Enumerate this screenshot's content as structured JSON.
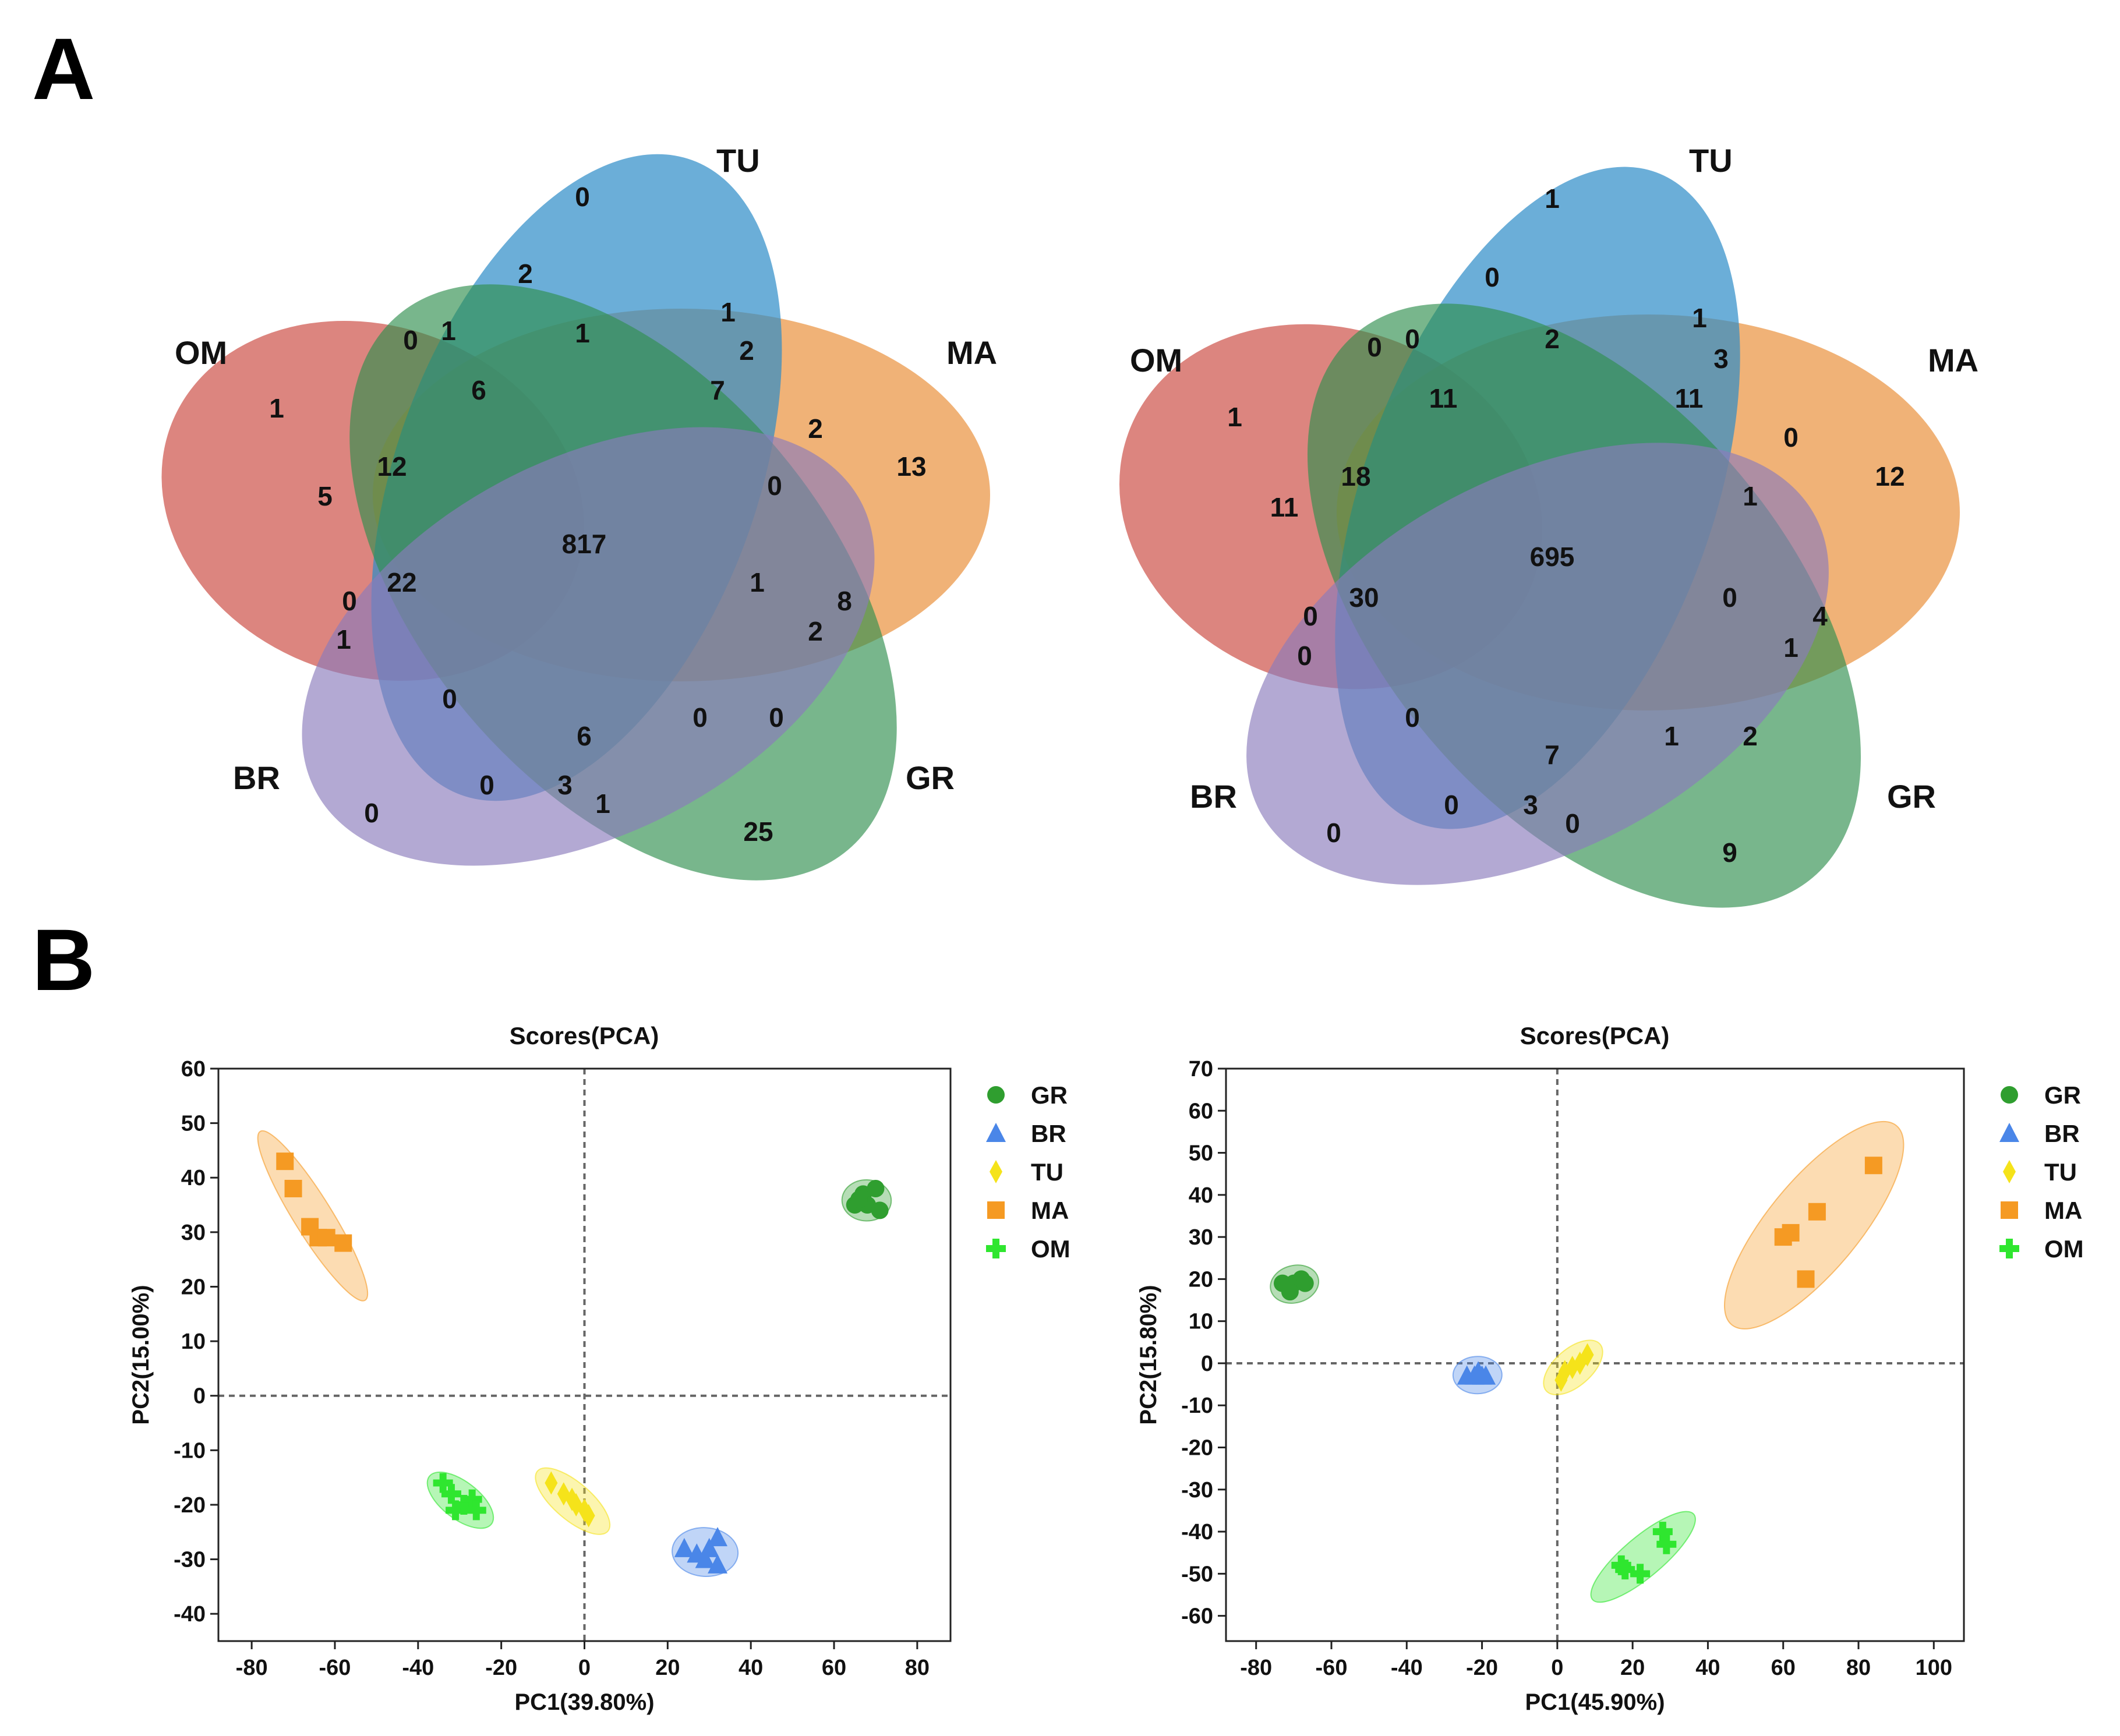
{
  "panels": {
    "a_label": "A",
    "b_label": "B"
  },
  "venn_left": {
    "set_labels": {
      "TU": "TU",
      "MA": "MA",
      "GR": "GR",
      "BR": "BR",
      "OM": "OM"
    },
    "values": {
      "tu_only": "0",
      "om_only": "1",
      "ma_only": "13",
      "gr_only": "25",
      "br_only": "0",
      "v_2": "2",
      "v_0a": "0",
      "v_1a": "1",
      "v_1b": "1",
      "v_1c": "1",
      "v_2b": "2",
      "v_6": "6",
      "v_7": "7",
      "v_2c": "2",
      "v_12": "12",
      "v_5": "5",
      "v_0b": "0",
      "center": "817",
      "v_22": "22",
      "v_0c": "0",
      "v_1d": "1",
      "v_1e": "1",
      "v_8": "8",
      "v_2d": "2",
      "v_0d": "0",
      "v_0e": "0",
      "v_0f": "0",
      "v_6b": "6",
      "v_0g": "0",
      "v_3": "3",
      "v_1f": "1"
    }
  },
  "venn_right": {
    "set_labels": {
      "TU": "TU",
      "MA": "MA",
      "GR": "GR",
      "BR": "BR",
      "OM": "OM"
    },
    "values": {
      "tu_only": "1",
      "om_only": "1",
      "ma_only": "12",
      "gr_only": "9",
      "br_only": "0",
      "v_0a": "0",
      "v_0b": "0",
      "v_0c": "0",
      "v_2": "2",
      "v_1a": "1",
      "v_3": "3",
      "v_11a": "11",
      "v_11b": "11",
      "v_0d": "0",
      "v_18": "18",
      "v_11c": "11",
      "v_1b": "1",
      "center": "695",
      "v_30": "30",
      "v_0e": "0",
      "v_0f": "0",
      "v_0g": "0",
      "v_4": "4",
      "v_1c": "1",
      "v_0h": "0",
      "v_7": "7",
      "v_1d": "1",
      "v_2b": "2",
      "v_0i": "0",
      "v_3b": "3",
      "v_0j": "0"
    }
  },
  "colors": {
    "GR": "#1f9e1f",
    "BR": "#2f6fe8",
    "TU": "#f5e31a",
    "MA": "#f59a23",
    "OM": "#2fe62f"
  },
  "chart_data": [
    {
      "type": "scatter",
      "title": "Scores(PCA)",
      "xlabel": "PC1(39.80%)",
      "ylabel": "PC2(15.00%)",
      "xlim": [
        -88,
        88
      ],
      "ylim": [
        -45,
        60
      ],
      "xticks": [
        -80,
        -60,
        -40,
        -20,
        0,
        20,
        40,
        60,
        80
      ],
      "yticks": [
        -40,
        -30,
        -20,
        -10,
        0,
        10,
        20,
        30,
        40,
        50,
        60
      ],
      "legend": "right",
      "series": [
        {
          "name": "GR",
          "marker": "circle",
          "points": [
            [
              65,
              35
            ],
            [
              67,
              37
            ],
            [
              70,
              38
            ],
            [
              68,
              35
            ],
            [
              71,
              34
            ],
            [
              66,
              36
            ]
          ]
        },
        {
          "name": "BR",
          "marker": "triangle",
          "points": [
            [
              24,
              -28
            ],
            [
              27,
              -29
            ],
            [
              30,
              -28
            ],
            [
              32,
              -26
            ],
            [
              32,
              -31
            ],
            [
              29,
              -30
            ]
          ]
        },
        {
          "name": "TU",
          "marker": "diamond",
          "points": [
            [
              -8,
              -16
            ],
            [
              -5,
              -18
            ],
            [
              -2,
              -20
            ],
            [
              0,
              -21
            ],
            [
              1,
              -22
            ],
            [
              -3,
              -19
            ]
          ]
        },
        {
          "name": "MA",
          "marker": "square",
          "points": [
            [
              -72,
              43
            ],
            [
              -70,
              38
            ],
            [
              -66,
              31
            ],
            [
              -64,
              29
            ],
            [
              -62,
              29
            ],
            [
              -58,
              28
            ]
          ]
        },
        {
          "name": "OM",
          "marker": "cross",
          "points": [
            [
              -34,
              -16
            ],
            [
              -31,
              -21
            ],
            [
              -29,
              -20
            ],
            [
              -27,
              -19
            ],
            [
              -26,
              -21
            ],
            [
              -32,
              -18
            ]
          ]
        }
      ]
    },
    {
      "type": "scatter",
      "title": "Scores(PCA)",
      "xlabel": "PC1(45.90%)",
      "ylabel": "PC2(15.80%)",
      "xlim": [
        -88,
        108
      ],
      "ylim": [
        -66,
        70
      ],
      "xticks": [
        -80,
        -60,
        -40,
        -20,
        0,
        20,
        40,
        60,
        80,
        100
      ],
      "yticks": [
        -60,
        -50,
        -40,
        -30,
        -20,
        -10,
        0,
        10,
        20,
        30,
        40,
        50,
        60,
        70
      ],
      "legend": "right",
      "series": [
        {
          "name": "GR",
          "marker": "circle",
          "points": [
            [
              -73,
              19
            ],
            [
              -71,
              17
            ],
            [
              -70,
              19
            ],
            [
              -68,
              20
            ],
            [
              -67,
              19
            ]
          ]
        },
        {
          "name": "BR",
          "marker": "triangle",
          "points": [
            [
              -24,
              -3
            ],
            [
              -22,
              -3
            ],
            [
              -21,
              -2
            ],
            [
              -20,
              -3
            ],
            [
              -19,
              -3
            ]
          ]
        },
        {
          "name": "TU",
          "marker": "diamond",
          "points": [
            [
              1,
              -4
            ],
            [
              2,
              -2
            ],
            [
              4,
              -1
            ],
            [
              6,
              0
            ],
            [
              8,
              2
            ]
          ]
        },
        {
          "name": "MA",
          "marker": "square",
          "points": [
            [
              60,
              30
            ],
            [
              62,
              31
            ],
            [
              66,
              20
            ],
            [
              69,
              36
            ],
            [
              84,
              47
            ]
          ]
        },
        {
          "name": "OM",
          "marker": "cross",
          "points": [
            [
              17,
              -48
            ],
            [
              18,
              -49
            ],
            [
              22,
              -50
            ],
            [
              28,
              -40
            ],
            [
              29,
              -43
            ]
          ]
        }
      ]
    }
  ]
}
